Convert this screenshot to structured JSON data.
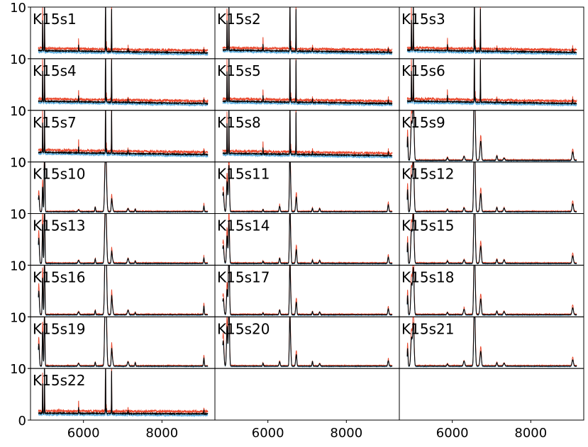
{
  "chart_data": {
    "type": "line",
    "layout": {
      "rows": 8,
      "cols": 3
    },
    "xlim": [
      4650,
      9350
    ],
    "ylim": [
      0,
      10
    ],
    "x_ticks": [
      6000,
      8000
    ],
    "x_tick_labels": [
      "6000",
      "8000"
    ],
    "y_ticks": [
      0,
      10
    ],
    "y_tick_labels": [
      "0",
      "10"
    ],
    "grid": false,
    "colors": {
      "upper": "#e8472c",
      "lower": "#5aaee0",
      "median": "#000000"
    },
    "panels": [
      {
        "label": "K15s1",
        "kind": "noisy_narrow",
        "base": 1.1
      },
      {
        "label": "K15s2",
        "kind": "noisy_narrow",
        "base": 1.2
      },
      {
        "label": "K15s3",
        "kind": "noisy_narrow",
        "base": 1.2
      },
      {
        "label": "K15s4",
        "kind": "noisy_narrow",
        "base": 1.3
      },
      {
        "label": "K15s5",
        "kind": "noisy_narrow",
        "base": 1.3
      },
      {
        "label": "K15s6",
        "kind": "noisy_narrow",
        "base": 1.3
      },
      {
        "label": "K15s7",
        "kind": "noisy_narrow",
        "base": 1.4
      },
      {
        "label": "K15s8",
        "kind": "noisy_narrow",
        "base": 1.2
      },
      {
        "label": "K15s9",
        "kind": "broad_lines",
        "base": 0.3
      },
      {
        "label": "K15s10",
        "kind": "broad_lines",
        "base": 0.35
      },
      {
        "label": "K15s11",
        "kind": "broad_lines",
        "base": 0.35
      },
      {
        "label": "K15s12",
        "kind": "broad_lines",
        "base": 0.35
      },
      {
        "label": "K15s13",
        "kind": "broad_lines",
        "base": 0.35
      },
      {
        "label": "K15s14",
        "kind": "broad_lines",
        "base": 0.35
      },
      {
        "label": "K15s15",
        "kind": "broad_lines",
        "base": 0.35
      },
      {
        "label": "K15s16",
        "kind": "broad_lines",
        "base": 0.4
      },
      {
        "label": "K15s17",
        "kind": "broad_lines",
        "base": 0.4
      },
      {
        "label": "K15s18",
        "kind": "broad_lines",
        "base": 0.4
      },
      {
        "label": "K15s19",
        "kind": "broad_lines",
        "base": 0.45
      },
      {
        "label": "K15s20",
        "kind": "broad_lines",
        "base": 0.45
      },
      {
        "label": "K15s21",
        "kind": "broad_lines",
        "base": 0.45
      },
      {
        "label": "K15s22",
        "kind": "noisy_broadband",
        "base": 1.2
      }
    ]
  }
}
